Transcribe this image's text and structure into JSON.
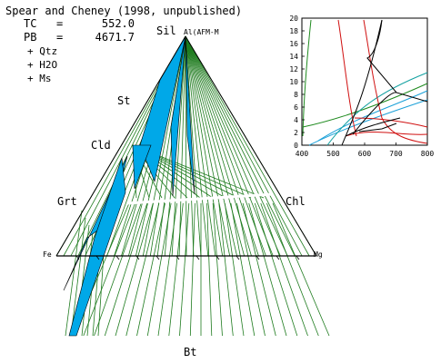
{
  "header": {
    "title": "Spear and Cheney (1998, unpublished)",
    "tc_label": "TC",
    "tc_eq": "=",
    "tc_value": "552.0",
    "pb_label": "PB",
    "pb_eq": "=",
    "pb_value": "4671.7",
    "phases": [
      "+ Qtz",
      "+ H2O",
      "+ Ms"
    ]
  },
  "diagram": {
    "apex_label": "Sil",
    "apex_sublabel": "Al(AFM-M",
    "minerals": {
      "st": "St",
      "cld": "Cld",
      "grt": "Grt",
      "chl": "Chl",
      "fe": "Fe",
      "mg": "Mg",
      "bt": "Bt"
    },
    "colors": {
      "tieline": "#1e7b1e",
      "field": "#00a8e8",
      "axis": "#000000"
    }
  },
  "inset": {
    "y_ticks": [
      "0",
      "2",
      "4",
      "6",
      "8",
      "10",
      "12",
      "14",
      "16",
      "18",
      "20"
    ],
    "x_ticks": [
      "400",
      "500",
      "600",
      "700",
      "800"
    ],
    "y_range": [
      0,
      20
    ],
    "x_range": [
      400,
      800
    ],
    "colors": {
      "green": "#1e8a1e",
      "red": "#d01010",
      "black": "#000000",
      "cyan": "#1aa0d8",
      "teal": "#10a0a0"
    }
  }
}
